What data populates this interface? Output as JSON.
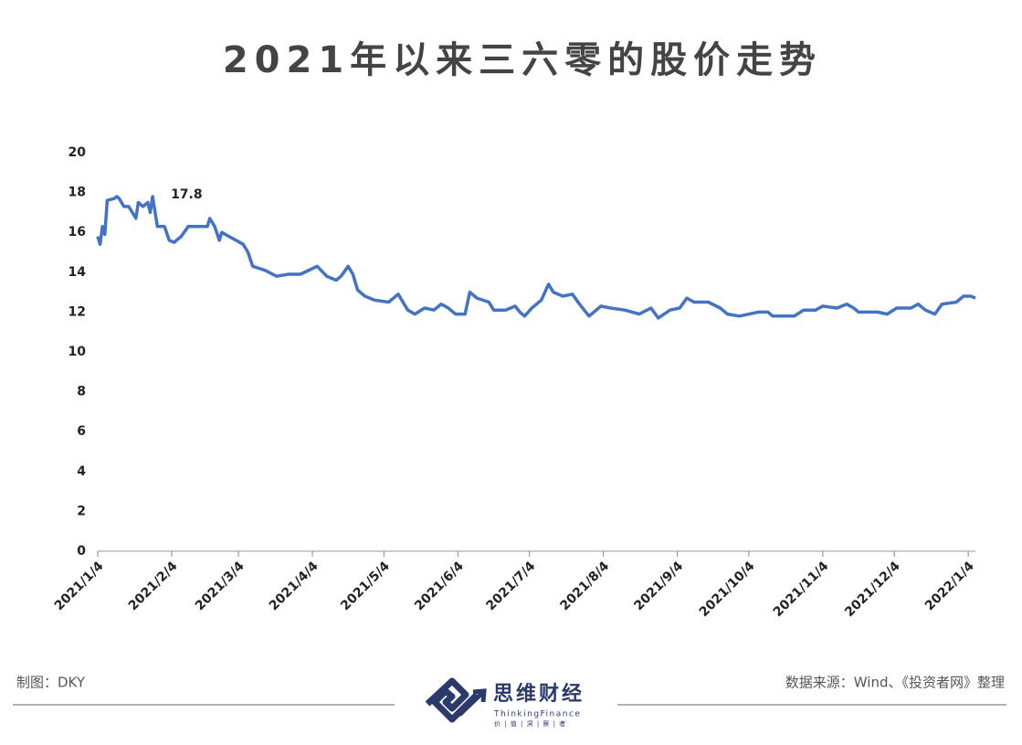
{
  "chart_data": {
    "type": "line",
    "title": "2021年以来三六零的股价走势",
    "x": [
      "2021/1/4",
      "2021/1/5",
      "2021/1/6",
      "2021/1/7",
      "2021/1/8",
      "2021/1/11",
      "2021/1/12",
      "2021/1/13",
      "2021/1/15",
      "2021/1/17",
      "2021/1/20",
      "2021/1/21",
      "2021/1/23",
      "2021/1/25",
      "2021/1/26",
      "2021/1/27",
      "2021/1/29",
      "2021/2/1",
      "2021/2/3",
      "2021/2/5",
      "2021/2/8",
      "2021/2/11",
      "2021/2/19",
      "2021/2/20",
      "2021/2/22",
      "2021/2/24",
      "2021/2/25",
      "2021/2/28",
      "2021/3/3",
      "2021/3/6",
      "2021/3/8",
      "2021/3/10",
      "2021/3/15",
      "2021/3/20",
      "2021/3/25",
      "2021/3/30",
      "2021/4/6",
      "2021/4/10",
      "2021/4/14",
      "2021/4/16",
      "2021/4/19",
      "2021/4/21",
      "2021/4/23",
      "2021/4/26",
      "2021/4/30",
      "2021/5/6",
      "2021/5/10",
      "2021/5/14",
      "2021/5/17",
      "2021/5/21",
      "2021/5/25",
      "2021/5/28",
      "2021/5/31",
      "2021/6/3",
      "2021/6/7",
      "2021/6/9",
      "2021/6/12",
      "2021/6/17",
      "2021/6/19",
      "2021/6/24",
      "2021/6/28",
      "2021/6/30",
      "2021/7/2",
      "2021/7/5",
      "2021/7/9",
      "2021/7/12",
      "2021/7/14",
      "2021/7/18",
      "2021/7/22",
      "2021/7/25",
      "2021/7/29",
      "2021/8/3",
      "2021/8/7",
      "2021/8/13",
      "2021/8/19",
      "2021/8/24",
      "2021/8/27",
      "2021/9/1",
      "2021/9/5",
      "2021/9/8",
      "2021/9/11",
      "2021/9/17",
      "2021/9/22",
      "2021/9/25",
      "2021/9/30",
      "2021/10/8",
      "2021/10/12",
      "2021/10/14",
      "2021/10/17",
      "2021/10/23",
      "2021/10/27",
      "2021/11/1",
      "2021/11/4",
      "2021/11/10",
      "2021/11/14",
      "2021/11/17",
      "2021/11/19",
      "2021/11/27",
      "2021/12/1",
      "2021/12/5",
      "2021/12/11",
      "2021/12/14",
      "2021/12/17",
      "2021/12/21",
      "2021/12/24",
      "2021/12/30",
      "2022/1/2",
      "2022/1/5",
      "2022/1/7"
    ],
    "series": [
      {
        "color": "#4472c4",
        "values": [
          15.8,
          15.4,
          16.3,
          15.9,
          17.6,
          17.7,
          17.8,
          17.7,
          17.3,
          17.3,
          16.7,
          17.5,
          17.3,
          17.5,
          17.0,
          17.8,
          16.3,
          16.3,
          15.6,
          15.5,
          15.8,
          16.3,
          16.3,
          16.7,
          16.3,
          15.6,
          16.0,
          15.8,
          15.6,
          15.4,
          15.0,
          14.3,
          14.1,
          13.8,
          13.9,
          13.9,
          14.3,
          13.8,
          13.6,
          13.8,
          14.3,
          13.9,
          13.1,
          12.8,
          12.6,
          12.5,
          12.9,
          12.1,
          11.9,
          12.2,
          12.1,
          12.4,
          12.2,
          11.9,
          11.9,
          13.0,
          12.7,
          12.5,
          12.1,
          12.1,
          12.3,
          12.0,
          11.8,
          12.2,
          12.6,
          13.4,
          13.0,
          12.8,
          12.9,
          12.4,
          11.8,
          12.3,
          12.2,
          12.1,
          11.9,
          12.2,
          11.7,
          12.1,
          12.2,
          12.7,
          12.5,
          12.5,
          12.2,
          11.9,
          11.8,
          12.0,
          12.0,
          11.8,
          11.8,
          11.8,
          12.1,
          12.1,
          12.3,
          12.2,
          12.4,
          12.2,
          12.0,
          12.0,
          11.9,
          12.2,
          12.2,
          12.4,
          12.1,
          11.9,
          12.4,
          12.5,
          12.8,
          12.8,
          12.7
        ]
      }
    ],
    "annotations": [
      {
        "x": "2021/1/27",
        "text": "17.8"
      }
    ],
    "xlim": [
      "2021/1/4",
      "2022/1/7"
    ],
    "xticks": [
      "2021/1/4",
      "2021/2/4",
      "2021/3/4",
      "2021/4/4",
      "2021/5/4",
      "2021/6/4",
      "2021/7/4",
      "2021/8/4",
      "2021/9/4",
      "2021/10/4",
      "2021/11/4",
      "2021/12/4",
      "2022/1/4"
    ],
    "ylim": [
      0,
      20
    ],
    "yticks": [
      0,
      2,
      4,
      6,
      8,
      10,
      12,
      14,
      16,
      18,
      20
    ],
    "grid": false
  },
  "footer": {
    "credit": "制图：DKY",
    "source": "数据来源：Wind、《投资者网》整理",
    "logo_name": "思维财经",
    "logo_en": "ThinkingFinance",
    "logo_slogan": "价 | 值 | 洞 | 察 | 者"
  }
}
